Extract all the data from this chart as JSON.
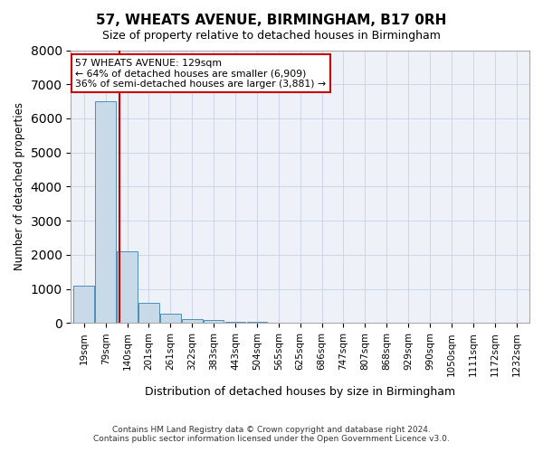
{
  "title": "57, WHEATS AVENUE, BIRMINGHAM, B17 0RH",
  "subtitle": "Size of property relative to detached houses in Birmingham",
  "xlabel": "Distribution of detached houses by size in Birmingham",
  "ylabel": "Number of detached properties",
  "footer_line1": "Contains HM Land Registry data © Crown copyright and database right 2024.",
  "footer_line2": "Contains public sector information licensed under the Open Government Licence v3.0.",
  "bin_labels": [
    "19sqm",
    "79sqm",
    "140sqm",
    "201sqm",
    "261sqm",
    "322sqm",
    "383sqm",
    "443sqm",
    "504sqm",
    "565sqm",
    "625sqm",
    "686sqm",
    "747sqm",
    "807sqm",
    "868sqm",
    "929sqm",
    "990sqm",
    "1050sqm",
    "1111sqm",
    "1172sqm",
    "1232sqm"
  ],
  "bar_values": [
    1100,
    6500,
    2100,
    600,
    280,
    130,
    80,
    50,
    50,
    0,
    0,
    0,
    0,
    0,
    0,
    0,
    0,
    0,
    0,
    0,
    0
  ],
  "bar_color": "#c8d9e8",
  "bar_edge_color": "#4a90b8",
  "property_line_x": 1.65,
  "property_line_color": "#cc0000",
  "ylim": [
    0,
    8000
  ],
  "yticks": [
    0,
    1000,
    2000,
    3000,
    4000,
    5000,
    6000,
    7000,
    8000
  ],
  "annotation_text": "57 WHEATS AVENUE: 129sqm\n← 64% of detached houses are smaller (6,909)\n36% of semi-detached houses are larger (3,881) →",
  "annotation_box_color": "#ffffff",
  "annotation_box_edge": "#cc0000",
  "grid_color": "#d0d8e8",
  "bg_color": "#eef2f8"
}
